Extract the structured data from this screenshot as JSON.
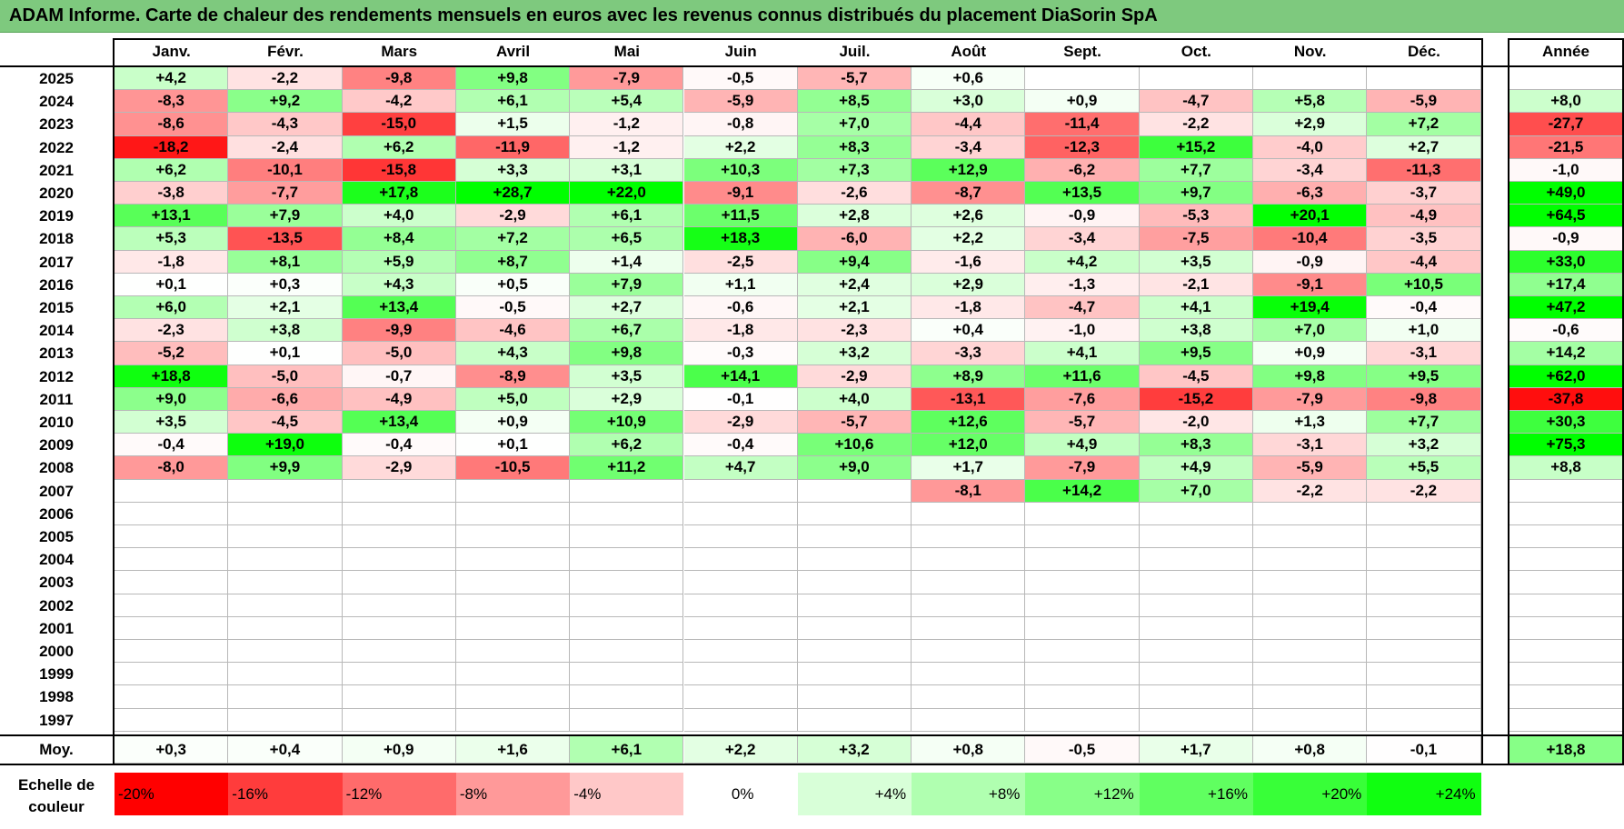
{
  "title": "ADAM Informe. Carte de chaleur des rendements mensuels en euros avec les revenus connus distribués du placement DiaSorin SpA",
  "headers": {
    "months": [
      "Janv.",
      "Févr.",
      "Mars",
      "Avril",
      "Mai",
      "Juin",
      "Juil.",
      "Août",
      "Sept.",
      "Oct.",
      "Nov.",
      "Déc."
    ],
    "year": "Année"
  },
  "legend": {
    "label_line1": "Echelle de",
    "label_line2": "couleur",
    "steps": [
      "-20%",
      "-16%",
      "-12%",
      "-8%",
      "-4%",
      "0%",
      "+4%",
      "+8%",
      "+12%",
      "+16%",
      "+20%",
      "+24%"
    ],
    "colors": [
      "#ff0000",
      "#ff3c3c",
      "#ff6b6b",
      "#ff9999",
      "#ffc8c8",
      "#ffffff",
      "#d8ffd8",
      "#b0ffb0",
      "#88ff88",
      "#60ff60",
      "#38ff38",
      "#10ff10"
    ]
  },
  "colors": {
    "title_background": "#7ec97e",
    "negative": "#ff0000",
    "positive": "#00ff00"
  },
  "chart_data": {
    "type": "heatmap",
    "title": "ADAM Informe. Carte de chaleur des rendements mensuels en euros avec les revenus connus distribués du placement DiaSorin SpA",
    "columns": [
      "Janv.",
      "Févr.",
      "Mars",
      "Avril",
      "Mai",
      "Juin",
      "Juil.",
      "Août",
      "Sept.",
      "Oct.",
      "Nov.",
      "Déc.",
      "Année"
    ],
    "rows": [
      {
        "year": "2025",
        "months": [
          "+4,2",
          "-2,2",
          "-9,8",
          "+9,8",
          "-7,9",
          "-0,5",
          "-5,7",
          "+0,6",
          "",
          "",
          "",
          ""
        ],
        "annual": ""
      },
      {
        "year": "2024",
        "months": [
          "-8,3",
          "+9,2",
          "-4,2",
          "+6,1",
          "+5,4",
          "-5,9",
          "+8,5",
          "+3,0",
          "+0,9",
          "-4,7",
          "+5,8",
          "-5,9"
        ],
        "annual": "+8,0"
      },
      {
        "year": "2023",
        "months": [
          "-8,6",
          "-4,3",
          "-15,0",
          "+1,5",
          "-1,2",
          "-0,8",
          "+7,0",
          "-4,4",
          "-11,4",
          "-2,2",
          "+2,9",
          "+7,2"
        ],
        "annual": "-27,7"
      },
      {
        "year": "2022",
        "months": [
          "-18,2",
          "-2,4",
          "+6,2",
          "-11,9",
          "-1,2",
          "+2,2",
          "+8,3",
          "-3,4",
          "-12,3",
          "+15,2",
          "-4,0",
          "+2,7"
        ],
        "annual": "-21,5"
      },
      {
        "year": "2021",
        "months": [
          "+6,2",
          "-10,1",
          "-15,8",
          "+3,3",
          "+3,1",
          "+10,3",
          "+7,3",
          "+12,9",
          "-6,2",
          "+7,7",
          "-3,4",
          "-11,3"
        ],
        "annual": "-1,0"
      },
      {
        "year": "2020",
        "months": [
          "-3,8",
          "-7,7",
          "+17,8",
          "+28,7",
          "+22,0",
          "-9,1",
          "-2,6",
          "-8,7",
          "+13,5",
          "+9,7",
          "-6,3",
          "-3,7"
        ],
        "annual": "+49,0"
      },
      {
        "year": "2019",
        "months": [
          "+13,1",
          "+7,9",
          "+4,0",
          "-2,9",
          "+6,1",
          "+11,5",
          "+2,8",
          "+2,6",
          "-0,9",
          "-5,3",
          "+20,1",
          "-4,9"
        ],
        "annual": "+64,5"
      },
      {
        "year": "2018",
        "months": [
          "+5,3",
          "-13,5",
          "+8,4",
          "+7,2",
          "+6,5",
          "+18,3",
          "-6,0",
          "+2,2",
          "-3,4",
          "-7,5",
          "-10,4",
          "-3,5"
        ],
        "annual": "-0,9"
      },
      {
        "year": "2017",
        "months": [
          "-1,8",
          "+8,1",
          "+5,9",
          "+8,7",
          "+1,4",
          "-2,5",
          "+9,4",
          "-1,6",
          "+4,2",
          "+3,5",
          "-0,9",
          "-4,4"
        ],
        "annual": "+33,0"
      },
      {
        "year": "2016",
        "months": [
          "+0,1",
          "+0,3",
          "+4,3",
          "+0,5",
          "+7,9",
          "+1,1",
          "+2,4",
          "+2,9",
          "-1,3",
          "-2,1",
          "-9,1",
          "+10,5"
        ],
        "annual": "+17,4"
      },
      {
        "year": "2015",
        "months": [
          "+6,0",
          "+2,1",
          "+13,4",
          "-0,5",
          "+2,7",
          "-0,6",
          "+2,1",
          "-1,8",
          "-4,7",
          "+4,1",
          "+19,4",
          "-0,4"
        ],
        "annual": "+47,2"
      },
      {
        "year": "2014",
        "months": [
          "-2,3",
          "+3,8",
          "-9,9",
          "-4,6",
          "+6,7",
          "-1,8",
          "-2,3",
          "+0,4",
          "-1,0",
          "+3,8",
          "+7,0",
          "+1,0"
        ],
        "annual": "-0,6"
      },
      {
        "year": "2013",
        "months": [
          "-5,2",
          "+0,1",
          "-5,0",
          "+4,3",
          "+9,8",
          "-0,3",
          "+3,2",
          "-3,3",
          "+4,1",
          "+9,5",
          "+0,9",
          "-3,1"
        ],
        "annual": "+14,2"
      },
      {
        "year": "2012",
        "months": [
          "+18,8",
          "-5,0",
          "-0,7",
          "-8,9",
          "+3,5",
          "+14,1",
          "-2,9",
          "+8,9",
          "+11,6",
          "-4,5",
          "+9,8",
          "+9,5"
        ],
        "annual": "+62,0"
      },
      {
        "year": "2011",
        "months": [
          "+9,0",
          "-6,6",
          "-4,9",
          "+5,0",
          "+2,9",
          "-0,1",
          "+4,0",
          "-13,1",
          "-7,6",
          "-15,2",
          "-7,9",
          "-9,8"
        ],
        "annual": "-37,8"
      },
      {
        "year": "2010",
        "months": [
          "+3,5",
          "-4,5",
          "+13,4",
          "+0,9",
          "+10,9",
          "-2,9",
          "-5,7",
          "+12,6",
          "-5,7",
          "-2,0",
          "+1,3",
          "+7,7"
        ],
        "annual": "+30,3"
      },
      {
        "year": "2009",
        "months": [
          "-0,4",
          "+19,0",
          "-0,4",
          "+0,1",
          "+6,2",
          "-0,4",
          "+10,6",
          "+12,0",
          "+4,9",
          "+8,3",
          "-3,1",
          "+3,2"
        ],
        "annual": "+75,3"
      },
      {
        "year": "2008",
        "months": [
          "-8,0",
          "+9,9",
          "-2,9",
          "-10,5",
          "+11,2",
          "+4,7",
          "+9,0",
          "+1,7",
          "-7,9",
          "+4,9",
          "-5,9",
          "+5,5"
        ],
        "annual": "+8,8"
      },
      {
        "year": "2007",
        "months": [
          "",
          "",
          "",
          "",
          "",
          "",
          "",
          "-8,1",
          "+14,2",
          "+7,0",
          "-2,2",
          "-2,2"
        ],
        "annual": ""
      },
      {
        "year": "2006",
        "months": [
          "",
          "",
          "",
          "",
          "",
          "",
          "",
          "",
          "",
          "",
          "",
          ""
        ],
        "annual": ""
      },
      {
        "year": "2005",
        "months": [
          "",
          "",
          "",
          "",
          "",
          "",
          "",
          "",
          "",
          "",
          "",
          ""
        ],
        "annual": ""
      },
      {
        "year": "2004",
        "months": [
          "",
          "",
          "",
          "",
          "",
          "",
          "",
          "",
          "",
          "",
          "",
          ""
        ],
        "annual": ""
      },
      {
        "year": "2003",
        "months": [
          "",
          "",
          "",
          "",
          "",
          "",
          "",
          "",
          "",
          "",
          "",
          ""
        ],
        "annual": ""
      },
      {
        "year": "2002",
        "months": [
          "",
          "",
          "",
          "",
          "",
          "",
          "",
          "",
          "",
          "",
          "",
          ""
        ],
        "annual": ""
      },
      {
        "year": "2001",
        "months": [
          "",
          "",
          "",
          "",
          "",
          "",
          "",
          "",
          "",
          "",
          "",
          ""
        ],
        "annual": ""
      },
      {
        "year": "2000",
        "months": [
          "",
          "",
          "",
          "",
          "",
          "",
          "",
          "",
          "",
          "",
          "",
          ""
        ],
        "annual": ""
      },
      {
        "year": "1999",
        "months": [
          "",
          "",
          "",
          "",
          "",
          "",
          "",
          "",
          "",
          "",
          "",
          ""
        ],
        "annual": ""
      },
      {
        "year": "1998",
        "months": [
          "",
          "",
          "",
          "",
          "",
          "",
          "",
          "",
          "",
          "",
          "",
          ""
        ],
        "annual": ""
      },
      {
        "year": "1997",
        "months": [
          "",
          "",
          "",
          "",
          "",
          "",
          "",
          "",
          "",
          "",
          "",
          ""
        ],
        "annual": ""
      }
    ],
    "average": {
      "label": "Moy.",
      "months": [
        "+0,3",
        "+0,4",
        "+0,9",
        "+1,6",
        "+6,1",
        "+2,2",
        "+3,2",
        "+0,8",
        "-0,5",
        "+1,7",
        "+0,8",
        "-0,1"
      ],
      "annual": "+18,8"
    }
  }
}
